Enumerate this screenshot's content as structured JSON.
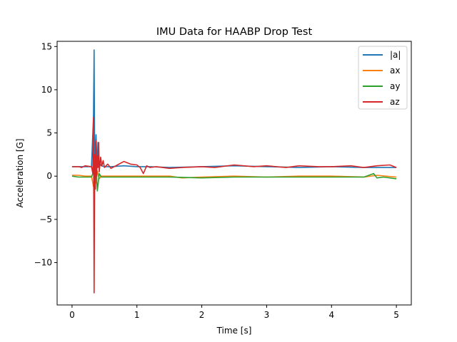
{
  "chart_data": {
    "type": "line",
    "title": "IMU Data for HAABP Drop Test",
    "xlabel": "Time [s]",
    "ylabel": "Acceleration [G]",
    "xlim": [
      -0.23,
      5.23
    ],
    "ylim": [
      -14.9,
      15.6
    ],
    "xticks": [
      0,
      1,
      2,
      3,
      4,
      5
    ],
    "yticks": [
      -10,
      -5,
      0,
      5,
      10,
      15
    ],
    "ytick_labels": [
      "−10",
      "−5",
      "0",
      "5",
      "10",
      "15"
    ],
    "grid": false,
    "legend_position": "top-right",
    "series": [
      {
        "name": "|a|",
        "color": "#1f77b4",
        "x": [
          0,
          0.1,
          0.2,
          0.3,
          0.33,
          0.34,
          0.35,
          0.36,
          0.37,
          0.38,
          0.39,
          0.4,
          0.42,
          0.45,
          0.5,
          0.6,
          0.8,
          1.0,
          1.2,
          1.5,
          2.0,
          2.5,
          3.0,
          3.5,
          4.0,
          4.5,
          5.0
        ],
        "y": [
          1.1,
          1.1,
          1.1,
          1.1,
          6.8,
          14.6,
          0.2,
          3.0,
          4.8,
          2.5,
          1.5,
          3.9,
          1.6,
          1.2,
          1.1,
          1.1,
          1.2,
          1.1,
          1.1,
          1.0,
          1.1,
          1.2,
          1.1,
          1.0,
          1.1,
          1.0,
          1.0
        ]
      },
      {
        "name": "ax",
        "color": "#ff7f0e",
        "x": [
          0,
          0.1,
          0.2,
          0.3,
          0.33,
          0.35,
          0.37,
          0.39,
          0.42,
          0.45,
          0.5,
          0.6,
          1.0,
          1.5,
          1.7,
          2.0,
          2.5,
          3.0,
          3.5,
          4.0,
          4.5,
          4.7,
          5.0
        ],
        "y": [
          0.1,
          0.1,
          0.0,
          0.0,
          -1.2,
          1.5,
          -0.8,
          0.6,
          -0.3,
          0.0,
          0.0,
          0.0,
          0.0,
          0.0,
          -0.2,
          -0.1,
          0.0,
          -0.1,
          0.0,
          0.0,
          -0.1,
          0.1,
          -0.1
        ]
      },
      {
        "name": "ay",
        "color": "#2ca02c",
        "x": [
          0,
          0.1,
          0.2,
          0.3,
          0.33,
          0.35,
          0.37,
          0.39,
          0.42,
          0.45,
          0.5,
          0.6,
          1.0,
          1.5,
          2.0,
          2.5,
          3.0,
          3.5,
          4.0,
          4.5,
          4.65,
          4.7,
          4.8,
          5.0
        ],
        "y": [
          0.0,
          -0.1,
          -0.1,
          -0.1,
          0.5,
          -0.5,
          1.2,
          -1.7,
          0.3,
          -0.1,
          -0.1,
          -0.1,
          -0.1,
          -0.1,
          -0.2,
          -0.1,
          -0.1,
          -0.1,
          -0.1,
          -0.1,
          0.3,
          -0.2,
          -0.1,
          -0.3
        ]
      },
      {
        "name": "az",
        "color": "#d62728",
        "x": [
          0,
          0.1,
          0.15,
          0.2,
          0.3,
          0.32,
          0.33,
          0.34,
          0.35,
          0.36,
          0.37,
          0.38,
          0.39,
          0.4,
          0.41,
          0.42,
          0.44,
          0.46,
          0.48,
          0.5,
          0.55,
          0.6,
          0.7,
          0.8,
          0.9,
          1.0,
          1.05,
          1.1,
          1.15,
          1.2,
          1.3,
          1.5,
          1.7,
          2.0,
          2.2,
          2.5,
          2.8,
          3.0,
          3.3,
          3.5,
          3.8,
          4.0,
          4.3,
          4.5,
          4.7,
          4.9,
          5.0
        ],
        "y": [
          1.1,
          1.1,
          1.0,
          1.2,
          1.1,
          0.3,
          6.8,
          -13.5,
          2.5,
          -1.5,
          4.1,
          0.0,
          2.3,
          1.0,
          3.9,
          0.5,
          2.2,
          1.2,
          1.8,
          1.0,
          1.4,
          0.9,
          1.3,
          1.7,
          1.4,
          1.3,
          1.0,
          0.3,
          1.2,
          1.0,
          1.1,
          0.9,
          1.0,
          1.1,
          1.0,
          1.3,
          1.1,
          1.2,
          1.0,
          1.2,
          1.1,
          1.1,
          1.2,
          1.0,
          1.2,
          1.3,
          1.0
        ]
      }
    ]
  }
}
